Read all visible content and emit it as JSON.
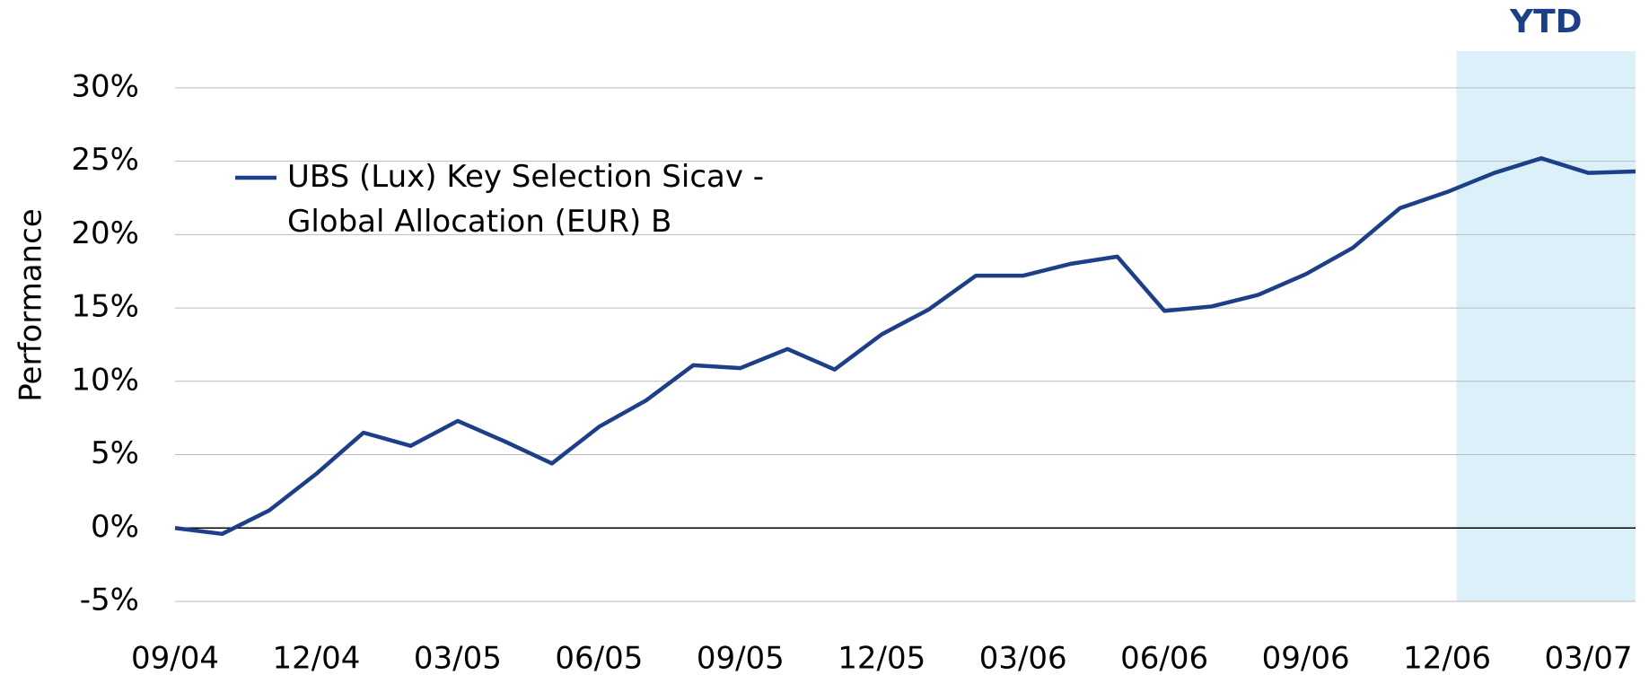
{
  "chart_data": {
    "type": "line",
    "y_axis_label": "Performance",
    "highlight_label": "YTD",
    "highlight_start_index": 27,
    "categories": [
      "09/04",
      null,
      null,
      "12/04",
      null,
      null,
      "03/05",
      null,
      null,
      "06/05",
      null,
      null,
      "09/05",
      null,
      null,
      "12/05",
      null,
      null,
      "03/06",
      null,
      null,
      "06/06",
      null,
      null,
      "09/06",
      null,
      null,
      "12/06",
      null,
      null,
      "03/07",
      null
    ],
    "series": [
      {
        "name": "UBS (Lux) Key Selection Sicav - Global Allocation (EUR) B",
        "color": "#1c3f87",
        "values": [
          0,
          -0.4,
          1.2,
          3.7,
          6.5,
          5.6,
          7.3,
          5.9,
          4.4,
          6.9,
          8.7,
          11.1,
          10.9,
          12.2,
          10.8,
          13.2,
          14.9,
          17.2,
          17.2,
          18.0,
          18.5,
          14.8,
          15.1,
          15.9,
          17.3,
          19.1,
          21.8,
          22.9,
          24.2,
          25.2,
          24.2,
          24.3
        ]
      }
    ],
    "ylim": [
      -5,
      32.5
    ],
    "yticks": [
      {
        "value": -5,
        "label": "-5%"
      },
      {
        "value": 0,
        "label": "0%"
      },
      {
        "value": 5,
        "label": "5%"
      },
      {
        "value": 10,
        "label": "10%"
      },
      {
        "value": 15,
        "label": "15%"
      },
      {
        "value": 20,
        "label": "20%"
      },
      {
        "value": 25,
        "label": "25%"
      },
      {
        "value": 30,
        "label": "30%"
      }
    ],
    "grid": true,
    "legend": "upper left"
  }
}
